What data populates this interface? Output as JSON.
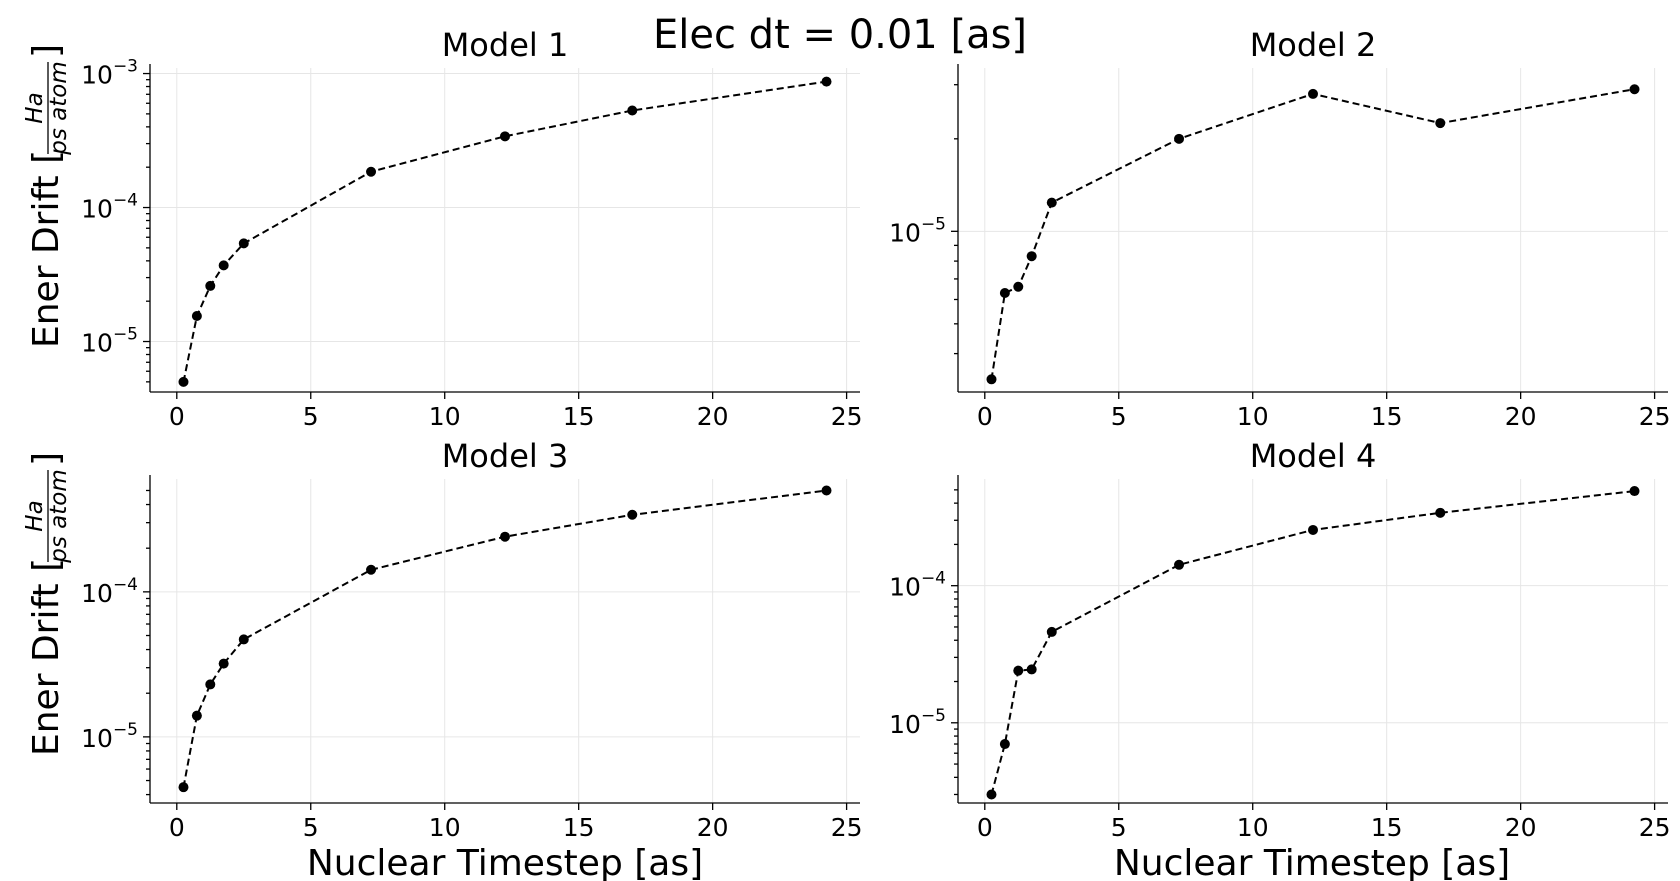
{
  "suptitle": "Elec dt = 0.01 [as]",
  "xlabel": "Nuclear Timestep [as]",
  "ylabel": {
    "prefix": "Ener Drift [",
    "numerator": "Ha",
    "denominator": "ps atom",
    "suffix": "]"
  },
  "chart_data": [
    {
      "type": "line",
      "title": "Model 1",
      "yscale": "log",
      "xlim": [
        -1,
        25.5
      ],
      "ylim": [
        4.2e-06,
        0.0011
      ],
      "xticks": [
        0,
        5,
        10,
        15,
        20,
        25
      ],
      "yticks": [
        {
          "value": 1e-05,
          "base": "10",
          "exp": "−5"
        },
        {
          "value": 0.0001,
          "base": "10",
          "exp": "−4"
        },
        {
          "value": 0.001,
          "base": "10",
          "exp": "−3"
        }
      ],
      "grid": true,
      "x": [
        0.25,
        0.75,
        1.25,
        1.75,
        2.5,
        7.25,
        12.25,
        17,
        24.25
      ],
      "y": [
        5e-06,
        1.55e-05,
        2.6e-05,
        3.7e-05,
        5.4e-05,
        0.000185,
        0.00034,
        0.00053,
        0.00087
      ]
    },
    {
      "type": "line",
      "title": "Model 2",
      "yscale": "log",
      "xlim": [
        -1,
        25.5
      ],
      "ylim": [
        3e-06,
        3.4e-05
      ],
      "xticks": [
        0,
        5,
        10,
        15,
        20,
        25
      ],
      "yticks": [
        {
          "value": 1e-05,
          "base": "10",
          "exp": "−5"
        }
      ],
      "grid": true,
      "x": [
        0.25,
        0.75,
        1.25,
        1.75,
        2.5,
        7.25,
        12.25,
        17,
        24.25
      ],
      "y": [
        3.3e-06,
        6.3e-06,
        6.6e-06,
        8.3e-06,
        1.24e-05,
        2e-05,
        2.8e-05,
        2.25e-05,
        2.9e-05
      ]
    },
    {
      "type": "line",
      "title": "Model 3",
      "yscale": "log",
      "xlim": [
        -1,
        25.5
      ],
      "ylim": [
        3.5e-06,
        0.0006
      ],
      "xticks": [
        0,
        5,
        10,
        15,
        20,
        25
      ],
      "yticks": [
        {
          "value": 1e-05,
          "base": "10",
          "exp": "−5"
        },
        {
          "value": 0.0001,
          "base": "10",
          "exp": "−4"
        }
      ],
      "grid": true,
      "x": [
        0.25,
        0.75,
        1.25,
        1.75,
        2.5,
        7.25,
        12.25,
        17,
        24.25
      ],
      "y": [
        4.5e-06,
        1.4e-05,
        2.3e-05,
        3.2e-05,
        4.7e-05,
        0.000142,
        0.00024,
        0.00034,
        0.0005
      ]
    },
    {
      "type": "line",
      "title": "Model 4",
      "yscale": "log",
      "xlim": [
        -1,
        25.5
      ],
      "ylim": [
        2.6e-06,
        0.0006
      ],
      "xticks": [
        0,
        5,
        10,
        15,
        20,
        25
      ],
      "yticks": [
        {
          "value": 1e-05,
          "base": "10",
          "exp": "−5"
        },
        {
          "value": 0.0001,
          "base": "10",
          "exp": "−4"
        }
      ],
      "grid": true,
      "x": [
        0.25,
        0.75,
        1.25,
        1.75,
        2.5,
        7.25,
        12.25,
        17,
        24.25
      ],
      "y": [
        3e-06,
        7e-06,
        2.4e-05,
        2.45e-05,
        4.6e-05,
        0.000142,
        0.000255,
        0.00034,
        0.00049
      ]
    }
  ]
}
